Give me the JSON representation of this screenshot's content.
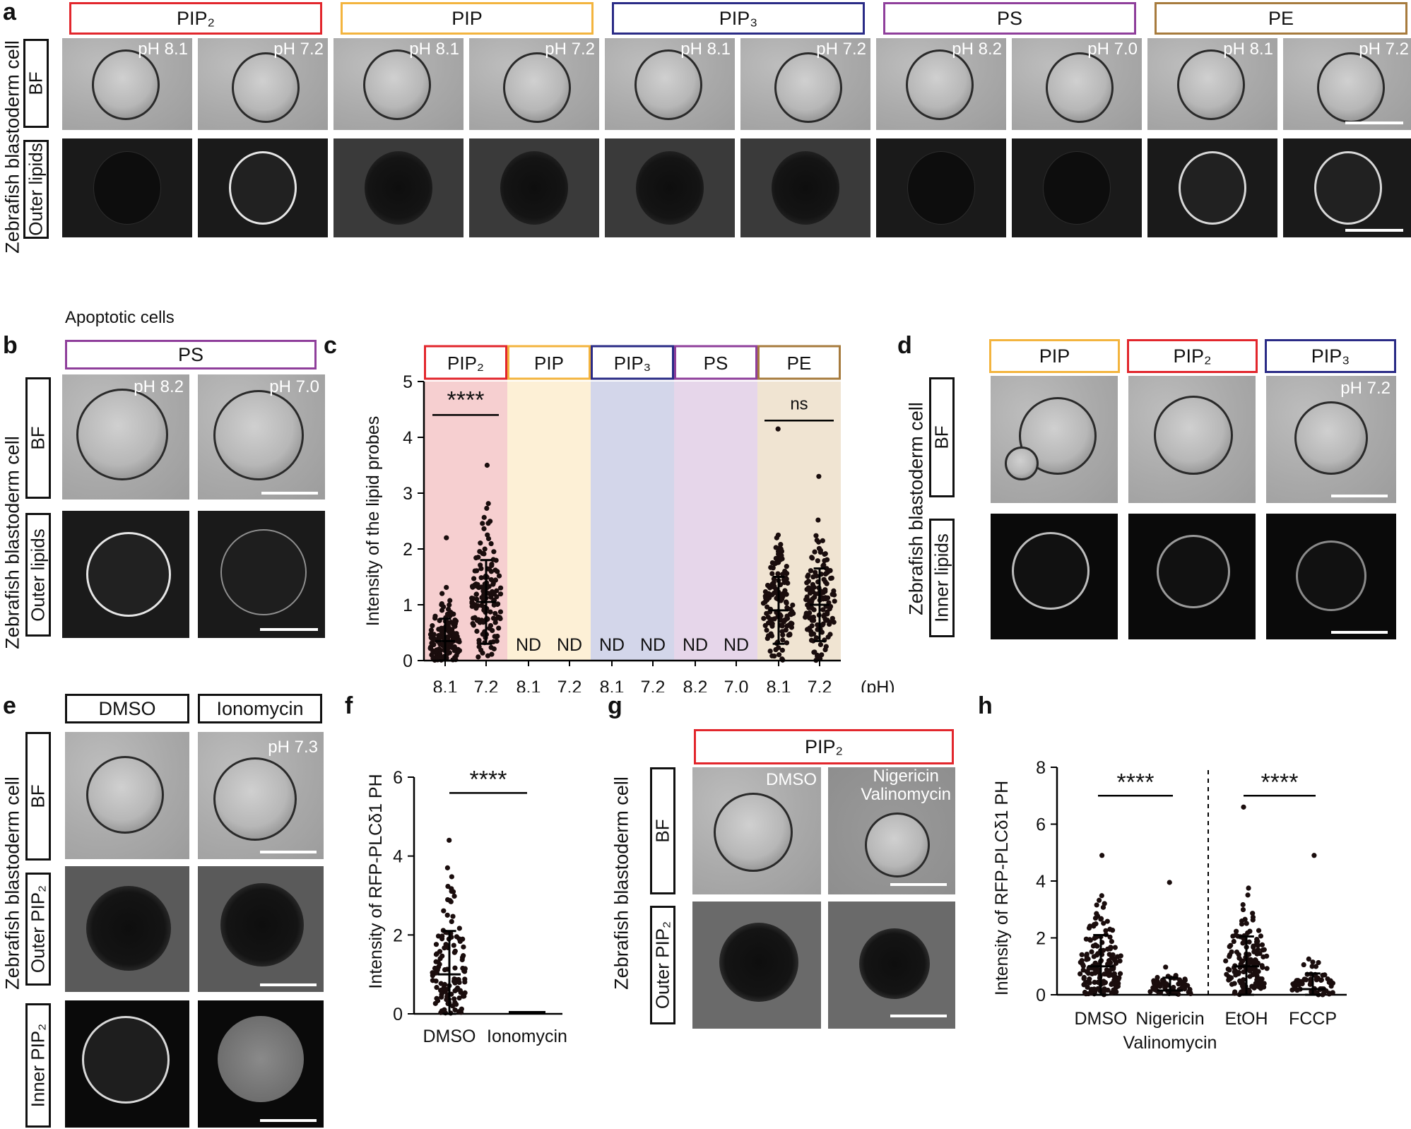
{
  "panel_a": {
    "label": "a",
    "side_label": "Zebrafish blastoderm cell",
    "row_bf": "BF",
    "row_fl": "Outer lipids",
    "groups": [
      {
        "label": "PIP₂",
        "color": "#e2262c",
        "ph": [
          "pH 8.1",
          "pH 7.2"
        ]
      },
      {
        "label": "PIP",
        "color": "#f3b43e",
        "ph": [
          "pH 8.1",
          "pH 7.2"
        ]
      },
      {
        "label": "PIP₃",
        "color": "#2a2b86",
        "ph": [
          "pH 8.1",
          "pH 7.2"
        ]
      },
      {
        "label": "PS",
        "color": "#8f3f9b",
        "ph": [
          "pH 8.2",
          "pH 7.0"
        ]
      },
      {
        "label": "PE",
        "color": "#a77b3d",
        "ph": [
          "pH 8.1",
          "pH 7.2"
        ]
      }
    ]
  },
  "panel_b": {
    "label": "b",
    "title": "Apoptotic cells",
    "group": {
      "label": "PS",
      "color": "#8f3f9b"
    },
    "side_label": "Zebrafish blastoderm cell",
    "row_bf": "BF",
    "row_fl": "Outer lipids",
    "ph": [
      "pH 8.2",
      "pH 7.0"
    ]
  },
  "panel_c": {
    "label": "c"
  },
  "panel_d": {
    "label": "d",
    "groups": [
      {
        "label": "PIP",
        "color": "#f3b43e"
      },
      {
        "label": "PIP₂",
        "color": "#e2262c"
      },
      {
        "label": "PIP₃",
        "color": "#2a2b86"
      }
    ],
    "side_label": "Zebrafish blastoderm cell",
    "row_bf": "BF",
    "row_fl": "Inner lipids",
    "ph": "pH 7.2"
  },
  "panel_e": {
    "label": "e",
    "groups": [
      "DMSO",
      "Ionomycin"
    ],
    "side_label": "Zebrafish blastoderm cell",
    "row_bf": "BF",
    "row_outer": "Outer PIP₂",
    "row_inner": "Inner PIP₂",
    "ph": "pH 7.3"
  },
  "panel_f": {
    "label": "f"
  },
  "panel_g": {
    "label": "g",
    "group": {
      "label": "PIP₂",
      "color": "#e2262c"
    },
    "side_label": "Zebrafish blastoderm cell",
    "row_bf": "BF",
    "row_fl": "Outer PIP₂",
    "cond1": "DMSO",
    "cond2_line1": "Nigericin",
    "cond2_line2": "Valinomycin"
  },
  "panel_h": {
    "label": "h"
  },
  "chart_data": [
    {
      "id": "c",
      "type": "scatter",
      "ylabel": "Intensity of the lipid probes",
      "xunit": "(pH)",
      "ylim": [
        0,
        5
      ],
      "yticks": [
        "0",
        "1",
        "2",
        "3",
        "4",
        "5"
      ],
      "groups": [
        {
          "label": "PIP₂",
          "color": "#e2262c",
          "bg": "#f6cfd0",
          "x": [
            "8.1",
            "7.2"
          ],
          "mean_sd": [
            [
              0.35,
              0.4
            ],
            [
              1.05,
              0.75
            ]
          ],
          "max": [
            2.2,
            3.5
          ],
          "nd": false
        },
        {
          "label": "PIP",
          "color": "#f3b43e",
          "bg": "#fdf0d6",
          "x": [
            "8.1",
            "7.2"
          ],
          "nd": true
        },
        {
          "label": "PIP₃",
          "color": "#2a2b86",
          "bg": "#d3d6ea",
          "x": [
            "8.1",
            "7.2"
          ],
          "nd": true
        },
        {
          "label": "PS",
          "color": "#8f3f9b",
          "bg": "#e6d6ea",
          "x": [
            "8.2",
            "7.0"
          ],
          "nd": true
        },
        {
          "label": "PE",
          "color": "#a77b3d",
          "bg": "#f0e4d2",
          "x": [
            "8.1",
            "7.2"
          ],
          "mean_sd": [
            [
              0.9,
              0.6
            ],
            [
              1.0,
              0.65
            ]
          ],
          "max": [
            4.15,
            3.3
          ],
          "nd": false
        }
      ],
      "nd_text": "ND",
      "annotations": [
        {
          "text": "****",
          "group": 0
        },
        {
          "text": "ns",
          "group": 4
        }
      ]
    },
    {
      "id": "f",
      "type": "scatter",
      "ylabel": "Intensity of RFP-PLCδ1 PH",
      "ylim": [
        0,
        6
      ],
      "yticks": [
        "0",
        "2",
        "4",
        "6"
      ],
      "categories": [
        "DMSO",
        "Ionomycin"
      ],
      "mean_sd": [
        [
          1.0,
          1.1
        ],
        [
          0.0,
          0.0
        ]
      ],
      "max": [
        4.4,
        0.0
      ],
      "annotation": "****"
    },
    {
      "id": "h",
      "type": "scatter",
      "ylabel": "Intensity of RFP-PLCδ1 PH",
      "ylim": [
        0,
        8
      ],
      "yticks": [
        "0",
        "2",
        "4",
        "6",
        "8"
      ],
      "categories": [
        "DMSO",
        "Nigericin",
        "EtOH",
        "FCCP"
      ],
      "category_sub": [
        "",
        "Valinomycin",
        "",
        ""
      ],
      "mean_sd": [
        [
          1.0,
          1.1
        ],
        [
          0.15,
          0.45
        ],
        [
          1.0,
          1.05
        ],
        [
          0.2,
          0.55
        ]
      ],
      "max": [
        4.9,
        3.95,
        6.6,
        4.9
      ],
      "annotations": [
        "****",
        "****"
      ]
    }
  ]
}
